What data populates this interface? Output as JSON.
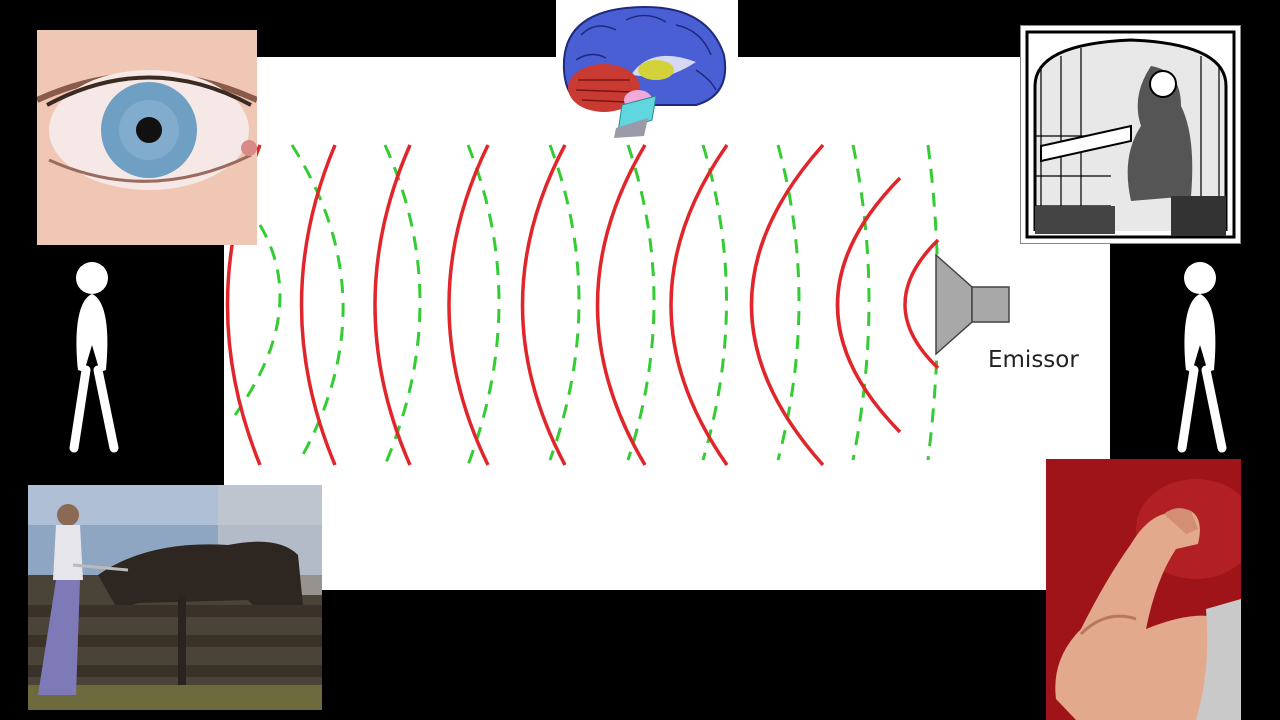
{
  "labels": {
    "emitter": "Emissor"
  },
  "colors": {
    "background": "#000000",
    "panel": "#ffffff",
    "solid_wave": "#e0262b",
    "dashed_wave": "#33cc33",
    "speaker": "#a8a8a8"
  },
  "images": [
    {
      "name": "eye-photo",
      "depicts": "eye"
    },
    {
      "name": "brain-illustration",
      "depicts": "brain"
    },
    {
      "name": "monk-engraving",
      "depicts": "engraving"
    },
    {
      "name": "horse-photo",
      "depicts": "horse"
    },
    {
      "name": "flexed-arm-photo",
      "depicts": "arm"
    }
  ],
  "icons": [
    "stick-figure-left-icon",
    "stick-figure-right-icon",
    "speaker-icon"
  ]
}
